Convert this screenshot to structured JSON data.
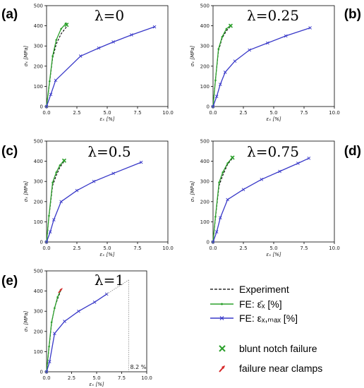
{
  "figure": {
    "legend": {
      "experiment": "Experiment",
      "fe_mean": "FE: ε̄ₓ [%]",
      "fe_max": "FE: εₓ,ₘₐₓ [%]",
      "blunt_notch": "blunt notch failure",
      "near_clamps": "failure near clamps"
    },
    "colors": {
      "experiment": "#000000",
      "fe_mean": "#2ca02c",
      "fe_max": "#3838c8",
      "blunt_notch_marker": "#2ca02c",
      "near_clamps_marker": "#d62728"
    }
  },
  "chart_data": [
    {
      "panel_label": "(a)",
      "title": "λ=0",
      "type": "line",
      "xlabel": "εₓ [%]",
      "ylabel": "σₓ [MPa]",
      "xlim": [
        0,
        10
      ],
      "ylim": [
        0,
        500
      ],
      "xticks": [
        "0.0",
        "2.5",
        "5.0",
        "7.5",
        "10.0"
      ],
      "yticks": [
        "0",
        "100",
        "200",
        "300",
        "400",
        "500"
      ],
      "grid": false,
      "series": [
        {
          "name": "Experiment",
          "style": "dashed",
          "x": [
            0,
            0.25,
            0.5,
            0.8,
            1.2,
            1.65
          ],
          "y": [
            0,
            120,
            240,
            310,
            360,
            395
          ]
        },
        {
          "name": "FE: ε̄ₓ [%]",
          "style": "solid",
          "x": [
            0,
            0.25,
            0.5,
            0.8,
            1.2,
            1.6
          ],
          "y": [
            0,
            125,
            250,
            330,
            385,
            412
          ]
        },
        {
          "name": "FE: εₓ,ₘₐₓ [%]",
          "style": "solid",
          "x": [
            0,
            0.35,
            0.75,
            2.8,
            4.3,
            5.5,
            7.0,
            8.9
          ],
          "y": [
            0,
            60,
            130,
            250,
            290,
            320,
            355,
            395
          ]
        }
      ],
      "failure": {
        "type": "blunt notch failure",
        "x": 1.65,
        "y": 405
      }
    },
    {
      "panel_label": "(b)",
      "title": "λ=0.25",
      "type": "line",
      "xlabel": "εₓ [%]",
      "ylabel": "σₓ [MPa]",
      "xlim": [
        0,
        10
      ],
      "ylim": [
        0,
        500
      ],
      "xticks": [
        "0.0",
        "2.5",
        "5.0",
        "7.5",
        "10.0"
      ],
      "yticks": [
        "0",
        "100",
        "200",
        "300",
        "400",
        "500"
      ],
      "grid": false,
      "series": [
        {
          "name": "Experiment",
          "style": "dashed",
          "x": [
            0,
            0.2,
            0.45,
            0.75,
            1.1,
            1.45
          ],
          "y": [
            0,
            130,
            275,
            340,
            375,
            398
          ]
        },
        {
          "name": "FE: ε̄ₓ [%]",
          "style": "solid",
          "x": [
            0,
            0.2,
            0.45,
            0.75,
            1.1,
            1.45
          ],
          "y": [
            0,
            130,
            285,
            345,
            385,
            402
          ]
        },
        {
          "name": "FE: εₓ,ₘₐₓ [%]",
          "style": "solid",
          "x": [
            0,
            0.3,
            0.6,
            1.0,
            1.8,
            3.0,
            4.5,
            6.0,
            8.0
          ],
          "y": [
            0,
            50,
            110,
            170,
            225,
            280,
            315,
            350,
            390
          ]
        }
      ],
      "failure": {
        "type": "blunt notch failure",
        "x": 1.45,
        "y": 400
      }
    },
    {
      "panel_label": "(c)",
      "title": "λ=0.5",
      "type": "line",
      "xlabel": "εₓ [%]",
      "ylabel": "σₓ [MPa]",
      "xlim": [
        0,
        10
      ],
      "ylim": [
        0,
        500
      ],
      "xticks": [
        "0.0",
        "2.5",
        "5.0",
        "7.5",
        "10.0"
      ],
      "yticks": [
        "0",
        "100",
        "200",
        "300",
        "400",
        "500"
      ],
      "grid": false,
      "series": [
        {
          "name": "Experiment",
          "style": "dashed",
          "x": [
            0,
            0.2,
            0.5,
            0.8,
            1.1,
            1.45
          ],
          "y": [
            0,
            125,
            280,
            330,
            370,
            400
          ]
        },
        {
          "name": "FE: ε̄ₓ [%]",
          "style": "solid",
          "x": [
            0,
            0.2,
            0.5,
            0.8,
            1.1,
            1.45
          ],
          "y": [
            0,
            130,
            295,
            345,
            380,
            405
          ]
        },
        {
          "name": "FE: εₓ,ₘₐₓ [%]",
          "style": "solid",
          "x": [
            0,
            0.3,
            0.6,
            1.2,
            2.5,
            3.9,
            5.5,
            7.8
          ],
          "y": [
            0,
            50,
            110,
            200,
            255,
            300,
            340,
            395
          ]
        }
      ],
      "failure": {
        "type": "blunt notch failure",
        "x": 1.45,
        "y": 403
      }
    },
    {
      "panel_label": "(d)",
      "title": "λ=0.75",
      "type": "line",
      "xlabel": "εₓ [%]",
      "ylabel": "σₓ [MPa]",
      "xlim": [
        0,
        10
      ],
      "ylim": [
        0,
        500
      ],
      "xticks": [
        "0.0",
        "2.5",
        "5.0",
        "7.5",
        "10.0"
      ],
      "yticks": [
        "0",
        "100",
        "200",
        "300",
        "400",
        "500"
      ],
      "grid": false,
      "series": [
        {
          "name": "Experiment",
          "style": "dashed",
          "x": [
            0,
            0.2,
            0.5,
            0.8,
            1.2,
            1.6
          ],
          "y": [
            0,
            120,
            280,
            330,
            385,
            415
          ]
        },
        {
          "name": "FE: ε̄ₓ [%]",
          "style": "solid",
          "x": [
            0,
            0.2,
            0.5,
            0.8,
            1.2,
            1.6
          ],
          "y": [
            0,
            125,
            295,
            345,
            390,
            420
          ]
        },
        {
          "name": "FE: εₓ,ₘₐₓ [%]",
          "style": "solid",
          "x": [
            0,
            0.3,
            0.6,
            1.2,
            2.5,
            4.0,
            5.5,
            7.0,
            7.9
          ],
          "y": [
            0,
            50,
            120,
            210,
            260,
            310,
            350,
            390,
            415
          ]
        }
      ],
      "failure": {
        "type": "blunt notch failure",
        "x": 1.6,
        "y": 418
      }
    },
    {
      "panel_label": "(e)",
      "title": "λ=1",
      "type": "line",
      "xlabel": "εₓ [%]",
      "ylabel": "σₓ [MPa]",
      "xlim": [
        0,
        10
      ],
      "ylim": [
        0,
        500
      ],
      "xticks": [
        "0.0",
        "2.5",
        "5.0",
        "7.5",
        "10.0"
      ],
      "yticks": [
        "0",
        "100",
        "200",
        "300",
        "400",
        "500"
      ],
      "grid": false,
      "series": [
        {
          "name": "Experiment",
          "style": "dashed",
          "x": [
            0,
            0.25,
            0.5,
            0.8,
            1.1,
            1.4
          ],
          "y": [
            0,
            120,
            240,
            320,
            360,
            400
          ]
        },
        {
          "name": "FE: ε̄ₓ [%]",
          "style": "solid",
          "x": [
            0,
            0.25,
            0.5,
            0.8,
            1.1,
            1.4
          ],
          "y": [
            0,
            125,
            245,
            315,
            370,
            405
          ]
        },
        {
          "name": "FE: εₓ,ₘₐₓ [%]",
          "style": "solid",
          "x": [
            0,
            0.3,
            0.8,
            1.8,
            3.2,
            4.8,
            6.0
          ],
          "y": [
            0,
            50,
            190,
            250,
            300,
            345,
            385
          ]
        },
        {
          "name": "extrapolation",
          "style": "dotted",
          "x": [
            6.0,
            8.2
          ],
          "y": [
            385,
            455
          ]
        }
      ],
      "annotation": {
        "text": "8.2 %",
        "x": 8.2
      },
      "failure": {
        "type": "failure near clamps",
        "x": 1.4,
        "y": 405
      }
    }
  ]
}
